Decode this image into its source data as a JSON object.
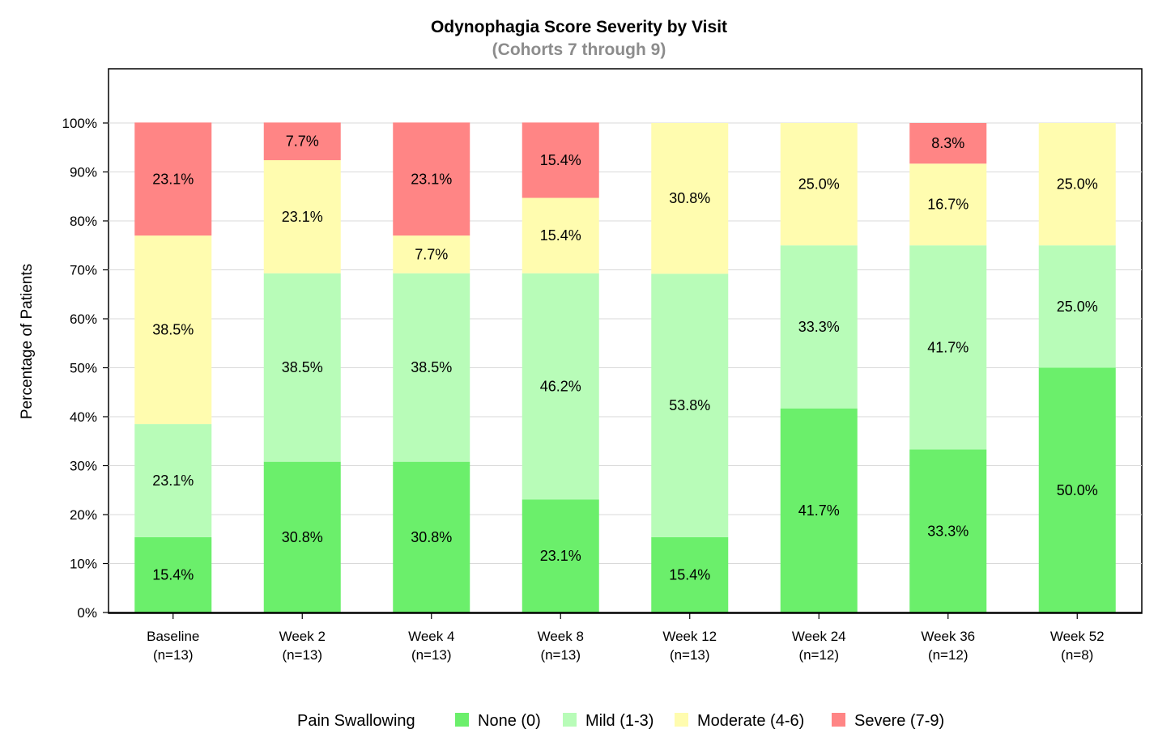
{
  "chart_data": {
    "type": "bar",
    "stacked": true,
    "title": "Odynophagia Score Severity by Visit",
    "subtitle": "(Cohorts 7 through 9)",
    "ylabel": "Percentage of Patients",
    "xlabel": "",
    "ylim": [
      0,
      100
    ],
    "yticks": [
      "0%",
      "10%",
      "20%",
      "30%",
      "40%",
      "50%",
      "60%",
      "70%",
      "80%",
      "90%",
      "100%"
    ],
    "grid": true,
    "categories": [
      "Baseline",
      "Week 2",
      "Week 4",
      "Week 8",
      "Week 12",
      "Week 24",
      "Week 36",
      "Week 52"
    ],
    "category_n": [
      "(n=13)",
      "(n=13)",
      "(n=13)",
      "(n=13)",
      "(n=13)",
      "(n=12)",
      "(n=12)",
      "(n=8)"
    ],
    "legend_title": "Pain Swallowing",
    "legend_position": "bottom",
    "series": [
      {
        "name": "None (0)",
        "color": "#6bef6b",
        "values": [
          15.4,
          30.8,
          30.8,
          23.1,
          15.4,
          41.7,
          33.3,
          50.0
        ],
        "labels": [
          "15.4%",
          "30.8%",
          "30.8%",
          "23.1%",
          "15.4%",
          "41.7%",
          "33.3%",
          "50.0%"
        ]
      },
      {
        "name": "Mild (1-3)",
        "color": "#b8fcb8",
        "values": [
          23.1,
          38.5,
          38.5,
          46.2,
          53.8,
          33.3,
          41.7,
          25.0
        ],
        "labels": [
          "23.1%",
          "38.5%",
          "38.5%",
          "46.2%",
          "53.8%",
          "33.3%",
          "41.7%",
          "25.0%"
        ]
      },
      {
        "name": "Moderate (4-6)",
        "color": "#fffcaf",
        "values": [
          38.5,
          23.1,
          7.7,
          15.4,
          30.8,
          25.0,
          16.7,
          25.0
        ],
        "labels": [
          "38.5%",
          "23.1%",
          "7.7%",
          "15.4%",
          "30.8%",
          "25.0%",
          "16.7%",
          "25.0%"
        ]
      },
      {
        "name": "Severe (7-9)",
        "color": "#ff8585",
        "values": [
          23.1,
          7.7,
          23.1,
          15.4,
          0,
          0,
          8.3,
          0
        ],
        "labels": [
          "23.1%",
          "7.7%",
          "23.1%",
          "15.4%",
          "",
          "",
          "8.3%",
          ""
        ]
      }
    ]
  }
}
